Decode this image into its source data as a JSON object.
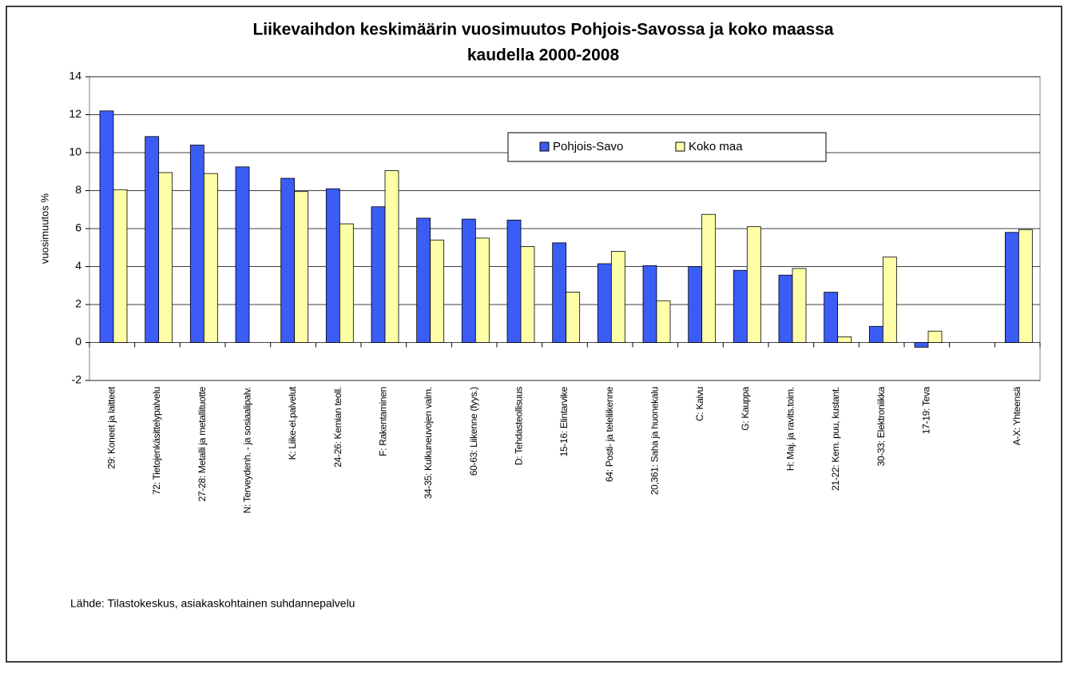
{
  "chart_data": {
    "type": "bar",
    "title": [
      "Liikevaihdon keskimäärin vuosimuutos Pohjois-Savossa ja koko maassa",
      "kaudella 2000-2008"
    ],
    "y_label": "vuosimuutos %",
    "source": "Lähde: Tilastokeskus, asiakaskohtainen suhdannepalvelu",
    "categories": [
      "29: Koneet ja laitteet",
      "72: Tietojenkäsittelypalvelu",
      "27-28: Metalli ja metallituotte",
      "N: Terveydenh. - ja sosiaalipalv.",
      "K: Liike-el.palvelut",
      "24-26: Kemian teoll.",
      "F: Rakentaminen",
      "34-35: Kulkuneuvojen valm.",
      "60-63: Liikenne (fyys.)",
      "D: Tehdasteollisuus",
      "15-16: Elintarvike",
      "64: Posti- ja teleliikenne",
      "20,361: Saha ja huonekalu",
      "C: Kaivu",
      "G: Kauppa",
      "H: Maj. ja ravits.toim.",
      "21-22: Kem. puu, kustant.",
      "30-33: Elektroniikka",
      "17-19: Teva",
      null,
      "A-X: Yhteensä"
    ],
    "series": [
      {
        "name": "Pohjois-Savo",
        "color": "#3b5cf5",
        "values": [
          12.2,
          10.85,
          10.4,
          9.25,
          8.65,
          8.1,
          7.15,
          6.55,
          6.5,
          6.45,
          5.25,
          4.15,
          4.05,
          4.0,
          3.8,
          3.55,
          2.65,
          0.85,
          -0.25,
          null,
          5.8
        ]
      },
      {
        "name": "Koko maa",
        "color": "#ffffa8",
        "values": [
          8.05,
          8.95,
          8.9,
          null,
          7.95,
          6.25,
          9.05,
          5.4,
          5.5,
          5.05,
          2.65,
          4.8,
          2.2,
          6.75,
          6.1,
          3.9,
          0.3,
          4.5,
          0.6,
          null,
          5.95
        ]
      }
    ],
    "ylim": [
      -2,
      14
    ],
    "yticks": [
      -2,
      0,
      2,
      4,
      6,
      8,
      10,
      12,
      14
    ],
    "grid": true,
    "legend": "top-right"
  }
}
